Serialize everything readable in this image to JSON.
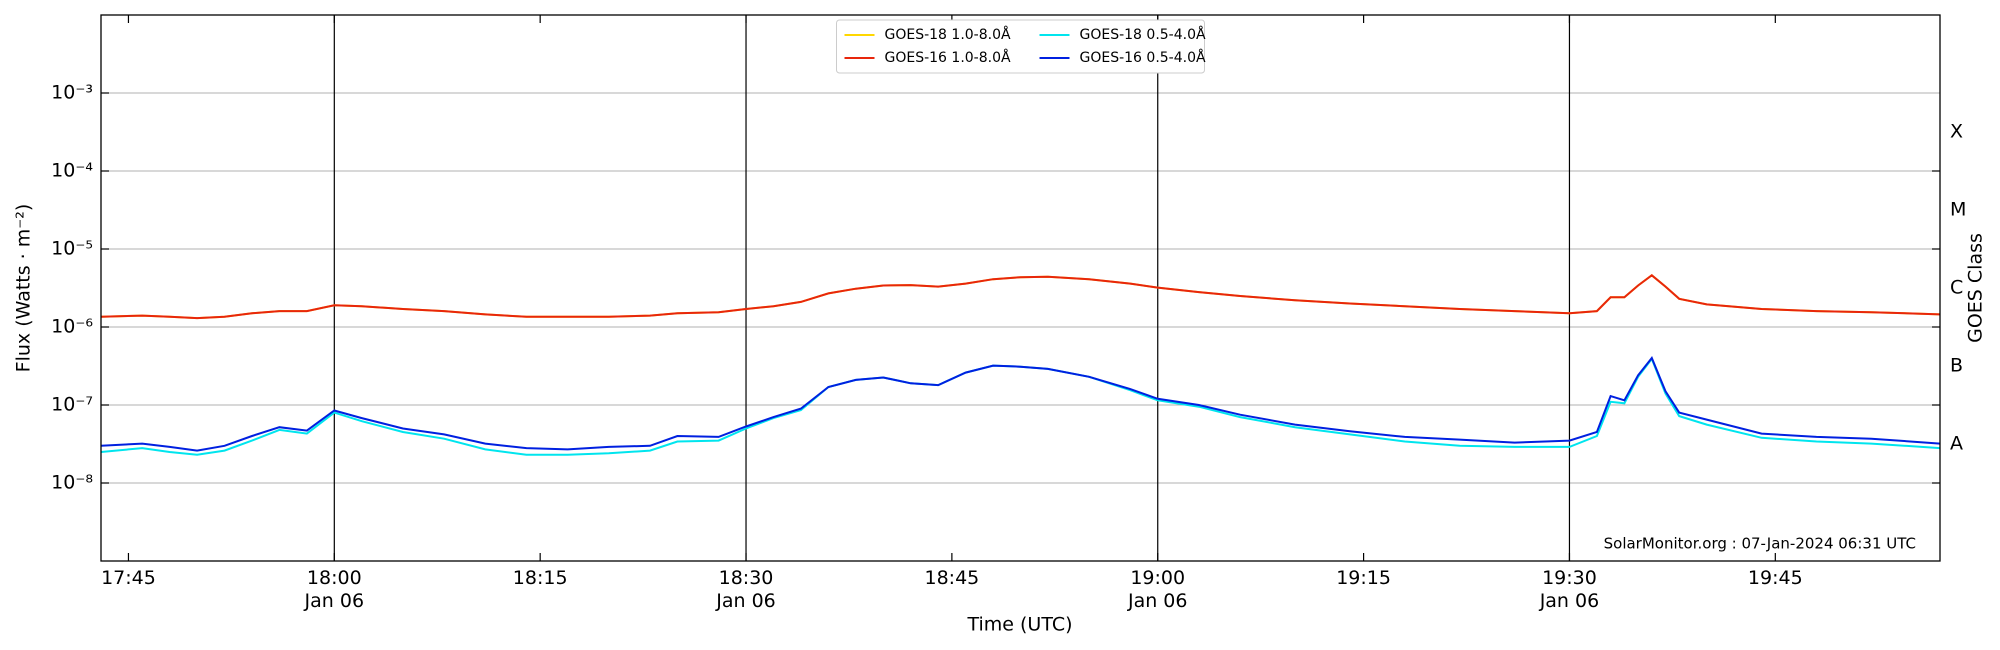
{
  "chart_data": {
    "type": "line",
    "xlabel": "Time (UTC)",
    "ylabel": "Flux (Watts · m⁻²)",
    "y2label": "GOES Class",
    "annotation": "SolarMonitor.org : 07-Jan-2024 06:31 UTC",
    "log_y": true,
    "grid": true,
    "legend": "upper center",
    "xlim": [
      "17:43",
      "19:57"
    ],
    "xticks": [
      "17:45",
      {
        "value": "18:00",
        "label": "18:00\nJan 06"
      },
      "18:15",
      {
        "value": "18:30",
        "label": "18:30\nJan 06"
      },
      "18:45",
      {
        "value": "19:00",
        "label": "19:00\nJan 06"
      },
      "19:15",
      {
        "value": "19:30",
        "label": "19:30\nJan 06"
      },
      "19:45"
    ],
    "vlines": [
      "18:00",
      "18:30",
      "19:00",
      "19:30"
    ],
    "ylim": [
      1e-09,
      0.01
    ],
    "yticks": [
      {
        "value": 1e-08,
        "label": "10⁻⁸"
      },
      {
        "value": 1e-07,
        "label": "10⁻⁷"
      },
      {
        "value": 1e-06,
        "label": "10⁻⁶"
      },
      {
        "value": 1e-05,
        "label": "10⁻⁵"
      },
      {
        "value": 0.0001,
        "label": "10⁻⁴"
      },
      {
        "value": 0.001,
        "label": "10⁻³"
      }
    ],
    "y2lim": [
      1e-09,
      0.01
    ],
    "y2ticks": [
      {
        "value": 1e-08,
        "label": "A"
      },
      {
        "value": 1e-07,
        "label": "B"
      },
      {
        "value": 1e-06,
        "label": "C"
      },
      {
        "value": 1e-05,
        "label": "M"
      },
      {
        "value": 0.0001,
        "label": "X"
      }
    ],
    "x": [
      "17:43",
      "17:46",
      "17:48",
      "17:50",
      "17:52",
      "17:54",
      "17:56",
      "17:58",
      "18:00",
      "18:02",
      "18:05",
      "18:08",
      "18:11",
      "18:14",
      "18:17",
      "18:20",
      "18:23",
      "18:25",
      "18:28",
      "18:30",
      "18:32",
      "18:34",
      "18:36",
      "18:38",
      "18:40",
      "18:42",
      "18:44",
      "18:46",
      "18:48",
      "18:50",
      "18:52",
      "18:55",
      "18:58",
      "19:00",
      "19:03",
      "19:06",
      "19:10",
      "19:14",
      "19:18",
      "19:22",
      "19:26",
      "19:30",
      "19:32",
      "19:33",
      "19:34",
      "19:35",
      "19:36",
      "19:37",
      "19:38",
      "19:40",
      "19:44",
      "19:48",
      "19:52",
      "19:57"
    ],
    "series": [
      {
        "name": "GOES-18 1.0-8.0Å",
        "color": "#ffd700",
        "values": [
          1.35e-06,
          1.4e-06,
          1.35e-06,
          1.3e-06,
          1.35e-06,
          1.5e-06,
          1.6e-06,
          1.6e-06,
          1.9e-06,
          1.85e-06,
          1.7e-06,
          1.6e-06,
          1.45e-06,
          1.35e-06,
          1.35e-06,
          1.35e-06,
          1.4e-06,
          1.5e-06,
          1.55e-06,
          1.7e-06,
          1.85e-06,
          2.1e-06,
          2.7e-06,
          3.1e-06,
          3.4e-06,
          3.45e-06,
          3.3e-06,
          3.6e-06,
          4.1e-06,
          4.35e-06,
          4.4e-06,
          4.1e-06,
          3.6e-06,
          3.2e-06,
          2.8e-06,
          2.5e-06,
          2.2e-06,
          2e-06,
          1.85e-06,
          1.7e-06,
          1.6e-06,
          1.5e-06,
          1.6e-06,
          2.4e-06,
          2.4e-06,
          3.4e-06,
          4.6e-06,
          3.3e-06,
          2.3e-06,
          1.95e-06,
          1.7e-06,
          1.6e-06,
          1.55e-06,
          1.45e-06
        ]
      },
      {
        "name": "GOES-16 1.0-8.0Å",
        "color": "#e8260c",
        "values": [
          1.35e-06,
          1.4e-06,
          1.35e-06,
          1.3e-06,
          1.35e-06,
          1.5e-06,
          1.6e-06,
          1.6e-06,
          1.9e-06,
          1.85e-06,
          1.7e-06,
          1.6e-06,
          1.45e-06,
          1.35e-06,
          1.35e-06,
          1.35e-06,
          1.4e-06,
          1.5e-06,
          1.55e-06,
          1.7e-06,
          1.85e-06,
          2.1e-06,
          2.7e-06,
          3.1e-06,
          3.4e-06,
          3.45e-06,
          3.3e-06,
          3.6e-06,
          4.1e-06,
          4.35e-06,
          4.4e-06,
          4.1e-06,
          3.6e-06,
          3.2e-06,
          2.8e-06,
          2.5e-06,
          2.2e-06,
          2e-06,
          1.85e-06,
          1.7e-06,
          1.6e-06,
          1.5e-06,
          1.6e-06,
          2.4e-06,
          2.4e-06,
          3.4e-06,
          4.6e-06,
          3.3e-06,
          2.3e-06,
          1.95e-06,
          1.7e-06,
          1.6e-06,
          1.55e-06,
          1.45e-06
        ]
      },
      {
        "name": "GOES-18 0.5-4.0Å",
        "color": "#00e5ee",
        "values": [
          2.5e-08,
          2.8e-08,
          2.5e-08,
          2.3e-08,
          2.6e-08,
          3.5e-08,
          4.8e-08,
          4.3e-08,
          8e-08,
          6.2e-08,
          4.5e-08,
          3.7e-08,
          2.7e-08,
          2.3e-08,
          2.3e-08,
          2.4e-08,
          2.6e-08,
          3.4e-08,
          3.5e-08,
          5e-08,
          6.8e-08,
          8.6e-08,
          1.7e-07,
          2.1e-07,
          2.25e-07,
          1.9e-07,
          1.8e-07,
          2.6e-07,
          3.2e-07,
          3.1e-07,
          2.9e-07,
          2.3e-07,
          1.55e-07,
          1.15e-07,
          9.5e-08,
          7e-08,
          5.2e-08,
          4.2e-08,
          3.4e-08,
          3e-08,
          2.9e-08,
          2.9e-08,
          4e-08,
          1.1e-07,
          1.05e-07,
          2.3e-07,
          3.9e-07,
          1.4e-07,
          7.2e-08,
          5.6e-08,
          3.8e-08,
          3.4e-08,
          3.2e-08,
          2.8e-08
        ]
      },
      {
        "name": "GOES-16 0.5-4.0Å",
        "color": "#0020e0",
        "values": [
          3e-08,
          3.2e-08,
          2.9e-08,
          2.6e-08,
          3e-08,
          4e-08,
          5.2e-08,
          4.7e-08,
          8.5e-08,
          6.8e-08,
          5e-08,
          4.2e-08,
          3.2e-08,
          2.8e-08,
          2.7e-08,
          2.9e-08,
          3e-08,
          4e-08,
          3.9e-08,
          5.3e-08,
          7e-08,
          9e-08,
          1.7e-07,
          2.1e-07,
          2.25e-07,
          1.9e-07,
          1.8e-07,
          2.6e-07,
          3.2e-07,
          3.1e-07,
          2.9e-07,
          2.3e-07,
          1.6e-07,
          1.2e-07,
          1e-07,
          7.5e-08,
          5.6e-08,
          4.6e-08,
          3.9e-08,
          3.6e-08,
          3.3e-08,
          3.5e-08,
          4.5e-08,
          1.3e-07,
          1.15e-07,
          2.4e-07,
          4e-07,
          1.5e-07,
          8e-08,
          6.5e-08,
          4.3e-08,
          3.9e-08,
          3.7e-08,
          3.2e-08
        ]
      }
    ]
  }
}
